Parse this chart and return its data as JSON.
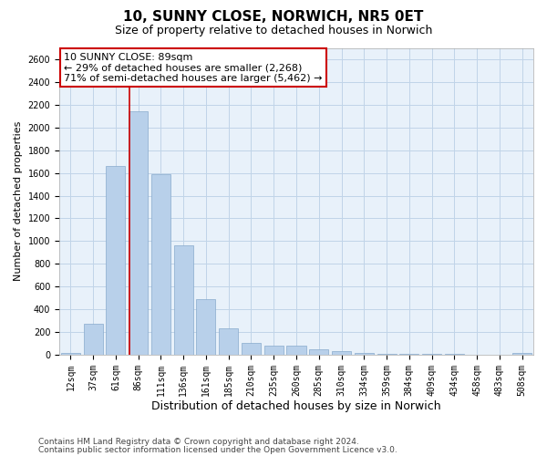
{
  "title1": "10, SUNNY CLOSE, NORWICH, NR5 0ET",
  "title2": "Size of property relative to detached houses in Norwich",
  "xlabel": "Distribution of detached houses by size in Norwich",
  "ylabel": "Number of detached properties",
  "categories": [
    "12sqm",
    "37sqm",
    "61sqm",
    "86sqm",
    "111sqm",
    "136sqm",
    "161sqm",
    "185sqm",
    "210sqm",
    "235sqm",
    "260sqm",
    "285sqm",
    "310sqm",
    "334sqm",
    "359sqm",
    "384sqm",
    "409sqm",
    "434sqm",
    "458sqm",
    "483sqm",
    "508sqm"
  ],
  "values": [
    15,
    270,
    1660,
    2140,
    1590,
    960,
    490,
    235,
    105,
    80,
    80,
    45,
    30,
    18,
    10,
    10,
    4,
    4,
    2,
    2,
    15
  ],
  "bar_color": "#b8d0ea",
  "bar_edge_color": "#88aacc",
  "grid_color": "#c0d4e8",
  "background_color": "#e8f1fa",
  "vline_color": "#cc0000",
  "vline_x": 2.6,
  "annotation_text": "10 SUNNY CLOSE: 89sqm\n← 29% of detached houses are smaller (2,268)\n71% of semi-detached houses are larger (5,462) →",
  "annotation_box_facecolor": "#ffffff",
  "annotation_box_edgecolor": "#cc0000",
  "ylim": [
    0,
    2700
  ],
  "yticks": [
    0,
    200,
    400,
    600,
    800,
    1000,
    1200,
    1400,
    1600,
    1800,
    2000,
    2200,
    2400,
    2600
  ],
  "footer1": "Contains HM Land Registry data © Crown copyright and database right 2024.",
  "footer2": "Contains public sector information licensed under the Open Government Licence v3.0.",
  "title1_fontsize": 11,
  "title2_fontsize": 9,
  "xlabel_fontsize": 9,
  "ylabel_fontsize": 8,
  "tick_fontsize": 7,
  "footer_fontsize": 6.5,
  "annotation_fontsize": 8
}
